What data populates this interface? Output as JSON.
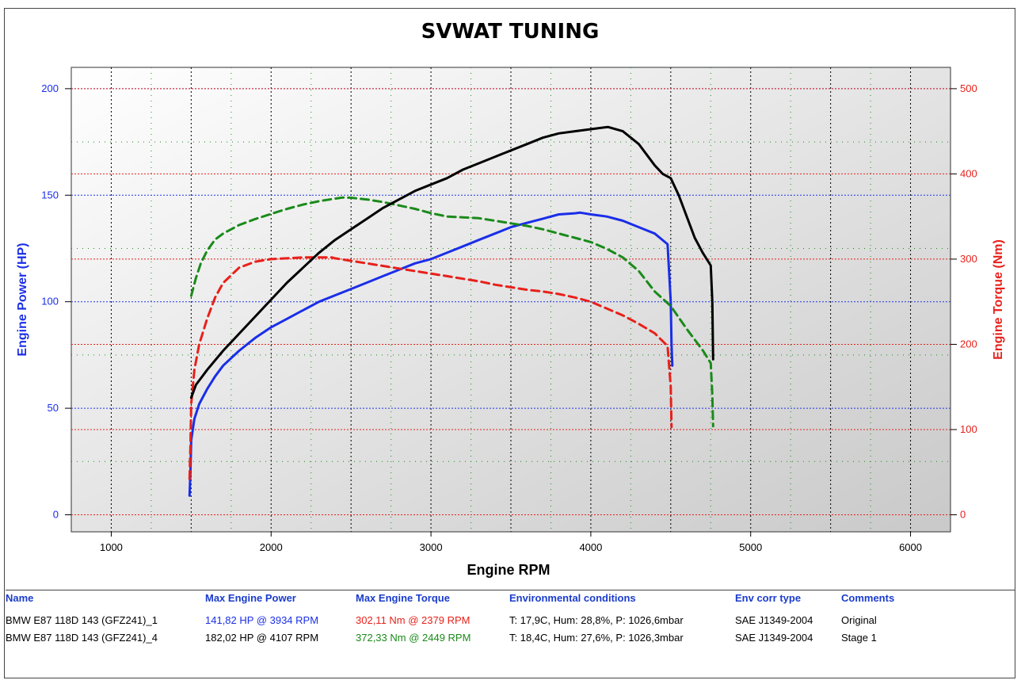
{
  "colors": {
    "power_axis": "#1a2ee8",
    "torque_axis": "#e8201a",
    "stage1_torque": "#1a8a1a",
    "stage1_power": "#000000",
    "header": "#1a3ccc"
  },
  "chart_data": {
    "type": "line",
    "title": "SVWAT TUNING",
    "xlabel": "Engine RPM",
    "ylabel_left": "Engine Power (HP)",
    "ylabel_right": "Engine Torque (Nm)",
    "xlim": [
      750,
      6250
    ],
    "ylim_left": [
      -8,
      210
    ],
    "ylim_right": [
      -20,
      525
    ],
    "x_ticks": [
      1000,
      2000,
      3000,
      4000,
      5000,
      6000
    ],
    "y_ticks_left": [
      0,
      50,
      100,
      150,
      200
    ],
    "y_ticks_right": [
      0,
      100,
      200,
      300,
      400,
      500
    ],
    "grid": true,
    "series": [
      {
        "axis": "left",
        "style": "solid",
        "color": "#1a2ee8",
        "x": [
          1490,
          1495,
          1500,
          1520,
          1550,
          1600,
          1650,
          1700,
          1800,
          1900,
          2000,
          2100,
          2200,
          2300,
          2400,
          2500,
          2600,
          2700,
          2800,
          2900,
          3000,
          3100,
          3200,
          3300,
          3400,
          3500,
          3600,
          3700,
          3800,
          3900,
          3934,
          4000,
          4100,
          4200,
          4300,
          4400,
          4480,
          4500,
          4505,
          4510
        ],
        "y": [
          9,
          20,
          35,
          45,
          52,
          59,
          65,
          70,
          77,
          83,
          88,
          92,
          96,
          100,
          103,
          106,
          109,
          112,
          115,
          118,
          120,
          123,
          126,
          129,
          132,
          135,
          137,
          139,
          141,
          141.5,
          141.82,
          141,
          140,
          138,
          135,
          132,
          127,
          100,
          80,
          70
        ]
      },
      {
        "axis": "right",
        "style": "dashed",
        "color": "#e8201a",
        "x": [
          1490,
          1495,
          1500,
          1520,
          1550,
          1600,
          1650,
          1700,
          1800,
          1900,
          2000,
          2100,
          2200,
          2300,
          2379,
          2400,
          2500,
          2600,
          2700,
          2800,
          2900,
          3000,
          3100,
          3200,
          3300,
          3400,
          3500,
          3600,
          3700,
          3800,
          3900,
          4000,
          4100,
          4200,
          4300,
          4400,
          4480,
          4500,
          4505
        ],
        "y": [
          42,
          80,
          130,
          170,
          200,
          230,
          255,
          272,
          290,
          297,
          300,
          301,
          302,
          302,
          302.11,
          301,
          298,
          295,
          292,
          289,
          286,
          283,
          280,
          277,
          274,
          270,
          267,
          264,
          262,
          259,
          255,
          250,
          242,
          234,
          224,
          213,
          198,
          150,
          103
        ]
      },
      {
        "axis": "right",
        "style": "dashed",
        "color": "#1a8a1a",
        "x": [
          1500,
          1530,
          1560,
          1600,
          1650,
          1700,
          1800,
          1900,
          2000,
          2100,
          2200,
          2300,
          2400,
          2449,
          2500,
          2600,
          2700,
          2800,
          2900,
          3000,
          3100,
          3200,
          3300,
          3400,
          3500,
          3600,
          3700,
          3800,
          3900,
          4000,
          4100,
          4200,
          4300,
          4400,
          4500,
          4600,
          4700,
          4750,
          4760,
          4765
        ],
        "y": [
          257,
          278,
          295,
          310,
          323,
          330,
          340,
          347,
          353,
          359,
          364,
          368,
          371,
          372.33,
          372,
          370,
          367,
          363,
          359,
          354,
          350,
          349,
          348,
          345,
          342,
          339,
          335,
          330,
          325,
          320,
          312,
          302,
          286,
          262,
          245,
          218,
          193,
          178,
          140,
          104
        ]
      },
      {
        "axis": "left",
        "style": "solid",
        "color": "#000000",
        "x": [
          1500,
          1530,
          1600,
          1700,
          1800,
          1900,
          2000,
          2100,
          2200,
          2300,
          2400,
          2500,
          2600,
          2700,
          2800,
          2900,
          3000,
          3100,
          3200,
          3300,
          3400,
          3500,
          3600,
          3700,
          3800,
          3900,
          4000,
          4107,
          4200,
          4300,
          4400,
          4450,
          4500,
          4550,
          4600,
          4650,
          4700,
          4750,
          4760,
          4765
        ],
        "y": [
          55,
          61,
          68,
          77,
          85,
          93,
          101,
          109,
          116,
          123,
          129,
          134,
          139,
          144,
          148,
          152,
          155,
          158,
          162,
          165,
          168,
          171,
          174,
          177,
          179,
          180,
          181,
          182.02,
          180,
          174,
          164,
          160,
          158,
          150,
          140,
          130,
          123,
          117,
          100,
          73
        ]
      }
    ]
  },
  "table": {
    "headers": [
      "Name",
      "Max Engine Power",
      "Max Engine Torque",
      "Environmental conditions",
      "Env corr type",
      "Comments"
    ],
    "rows": [
      {
        "name": "BMW E87 118D 143 (GFZ241)_1",
        "max_power": "141,82 HP @ 3934 RPM",
        "max_torque": "302,11 Nm @ 2379 RPM",
        "env": "T: 17,9C, Hum: 28,8%, P: 1026,6mbar",
        "corr": "SAE J1349-2004",
        "comment": "Original",
        "power_color": "#1a2ee8",
        "torque_color": "#e8201a"
      },
      {
        "name": "BMW E87 118D 143 (GFZ241)_4",
        "max_power": "182,02 HP @ 4107 RPM",
        "max_torque": "372,33 Nm @ 2449 RPM",
        "env": "T: 18,4C, Hum: 27,6%, P: 1026,3mbar",
        "corr": "SAE J1349-2004",
        "comment": "Stage 1",
        "power_color": "#000000",
        "torque_color": "#1a8a1a"
      }
    ]
  }
}
